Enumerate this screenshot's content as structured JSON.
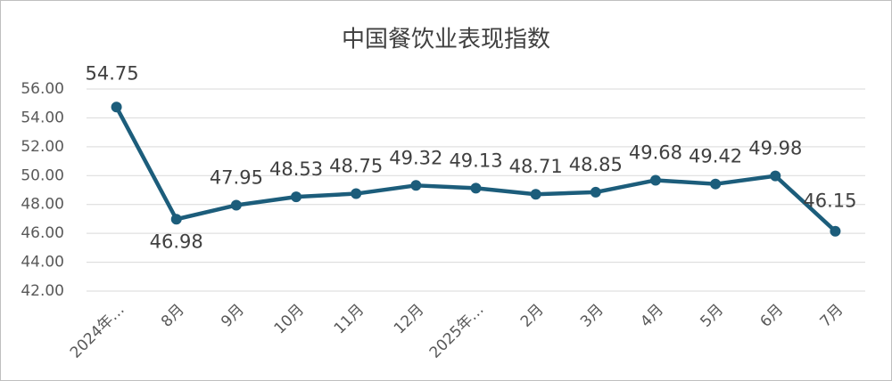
{
  "chart_data": {
    "type": "line",
    "title": "中国餐饮业表现指数",
    "categories": [
      "2024年…",
      "8月",
      "9月",
      "10月",
      "11月",
      "12月",
      "2025年…",
      "2月",
      "3月",
      "4月",
      "5月",
      "6月",
      "7月"
    ],
    "series": [
      {
        "name": "中国餐饮业表现指数",
        "color": "#1c5d7b",
        "values": [
          54.75,
          46.98,
          47.95,
          48.53,
          48.75,
          49.32,
          49.13,
          48.71,
          48.85,
          49.68,
          49.42,
          49.98,
          46.15
        ]
      }
    ],
    "ylim": [
      42,
      56
    ],
    "yticks": [
      {
        "value": 42,
        "label": "42.00"
      },
      {
        "value": 44,
        "label": "44.00"
      },
      {
        "value": 46,
        "label": "46.00"
      },
      {
        "value": 48,
        "label": "48.00"
      },
      {
        "value": 50,
        "label": "50.00"
      },
      {
        "value": 52,
        "label": "52.00"
      },
      {
        "value": 54,
        "label": "54.00"
      },
      {
        "value": 56,
        "label": "56.00"
      }
    ],
    "grid": true
  }
}
